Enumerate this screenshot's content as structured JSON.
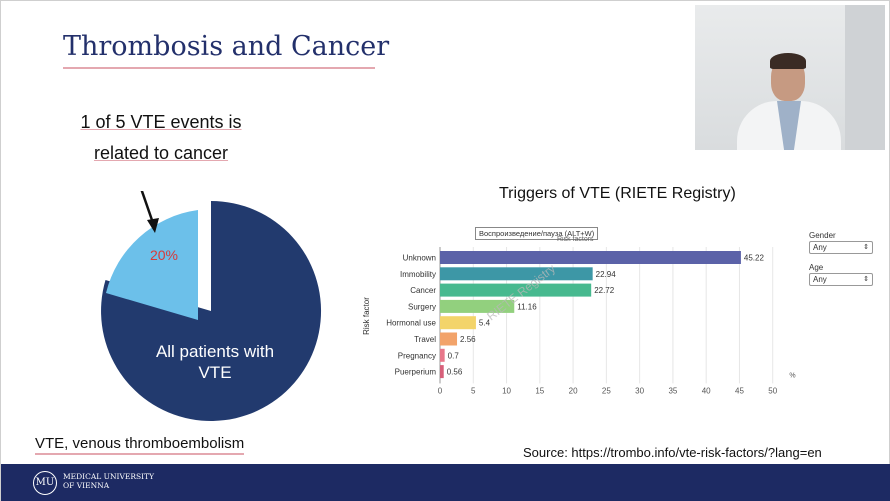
{
  "slide": {
    "title": "Thrombosis and Cancer",
    "callout_line1": "1 of 5 VTE events is",
    "callout_line2": "related to cancer",
    "pie_small_label": "20%",
    "pie_main_label_line1": "All patients with",
    "pie_main_label_line2": "VTE",
    "footnote": "VTE, venous thromboembolism",
    "source": "Source: https://trombo.info/vte-risk-factors/?lang=en"
  },
  "colors": {
    "title": "#23306b",
    "pie_main": "#223a6e",
    "pie_small": "#6cc0ea",
    "footer": "#1d2a63"
  },
  "footer": {
    "logo_line1": "MEDICAL UNIVERSITY",
    "logo_line2": "OF VIENNA",
    "logo_mark": "MU"
  },
  "overlay": {
    "tooltip": "Воспроизведение/пауза (ALT+W)",
    "risk_factors": "Risk factors",
    "watermark": "RIETE Registry"
  },
  "filters": {
    "gender_label": "Gender",
    "gender_value": "Any",
    "age_label": "Age",
    "age_value": "Any"
  },
  "chart_data": {
    "type": "bar",
    "orientation": "horizontal",
    "title": "Triggers of VTE (RIETE Registry)",
    "ylabel": "Risk factor",
    "xunit": "%",
    "categories": [
      "Unknown",
      "Immobility",
      "Cancer",
      "Surgery",
      "Hormonal use",
      "Travel",
      "Pregnancy",
      "Puerperium"
    ],
    "values": [
      45.22,
      22.94,
      22.72,
      11.16,
      5.4,
      2.56,
      0.7,
      0.56
    ],
    "value_labels": [
      "45.22",
      "22.94",
      "22.72",
      "11.16",
      "5.4",
      "2.56",
      "0.7",
      "0.56"
    ],
    "bar_colors": [
      "#5b62a8",
      "#3d97a6",
      "#47b98f",
      "#92d07e",
      "#f3d46a",
      "#f2a36a",
      "#e8778a",
      "#d7607a"
    ],
    "xticks": [
      0,
      5,
      10,
      15,
      20,
      25,
      30,
      35,
      40,
      45,
      50
    ],
    "xlim": [
      0,
      55
    ],
    "grid": true
  }
}
